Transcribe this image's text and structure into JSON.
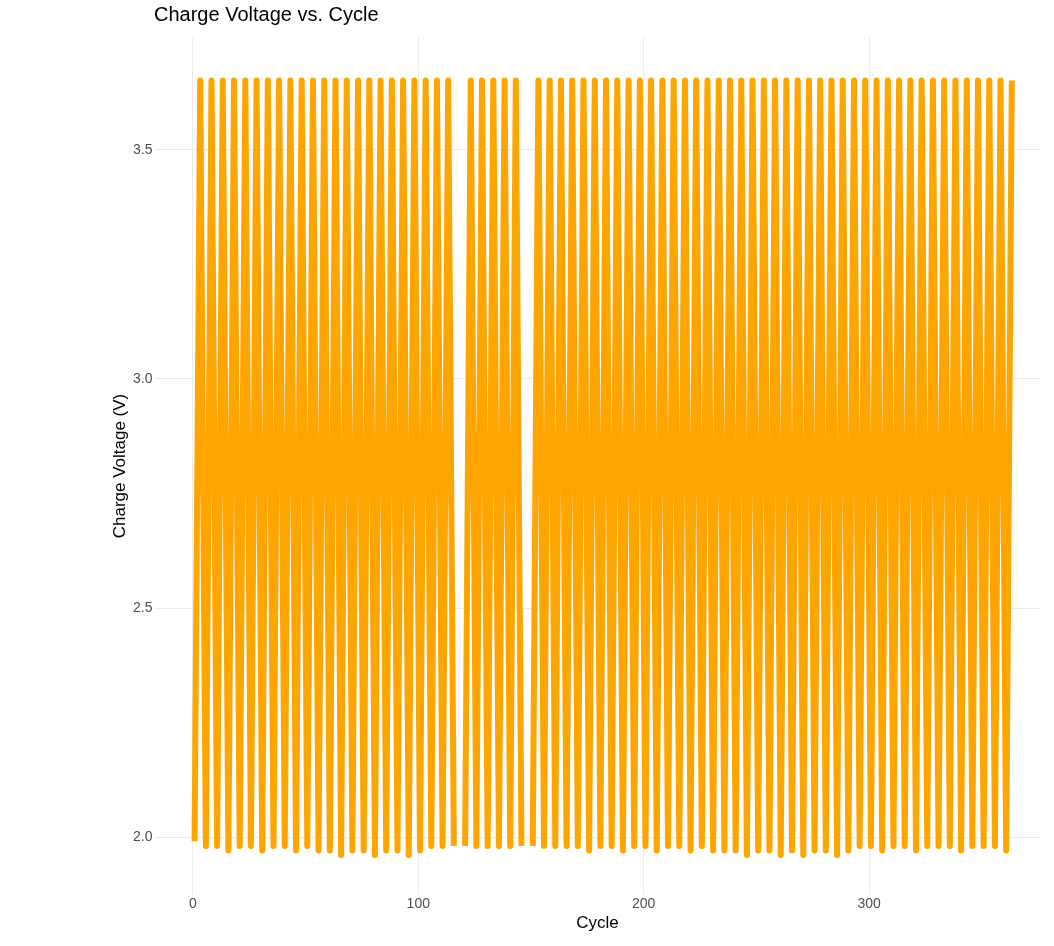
{
  "chart_data": {
    "type": "line",
    "title": "Charge Voltage vs. Cycle",
    "xlabel": "Cycle",
    "ylabel": "Charge Voltage (V)",
    "x": [
      1,
      3.5,
      6,
      8.5,
      11,
      13.5,
      16,
      18.5,
      21,
      23.5,
      26,
      28.5,
      31,
      33.5,
      36,
      38.5,
      41,
      43.5,
      46,
      48.5,
      51,
      53.5,
      56,
      58.5,
      61,
      63.5,
      66,
      68.5,
      71,
      73.5,
      76,
      78.5,
      81,
      83.5,
      86,
      88.5,
      91,
      93.5,
      96,
      98.5,
      101,
      103.5,
      106,
      108.5,
      111,
      113.5,
      116,
      118.5,
      121,
      123.5,
      126,
      128.5,
      131,
      133.5,
      136,
      138.5,
      141,
      143.5,
      146,
      148.5,
      151,
      153.5,
      156,
      158.5,
      161,
      163.5,
      166,
      168.5,
      171,
      173.5,
      176,
      178.5,
      181,
      183.5,
      186,
      188.5,
      191,
      193.5,
      196,
      198.5,
      201,
      203.5,
      206,
      208.5,
      211,
      213.5,
      216,
      218.5,
      221,
      223.5,
      226,
      228.5,
      231,
      233.5,
      236,
      238.5,
      241,
      243.5,
      246,
      248.5,
      251,
      253.5,
      256,
      258.5,
      261,
      263.5,
      266,
      268.5,
      271,
      273.5,
      276,
      278.5,
      281,
      283.5,
      286,
      288.5,
      291,
      293.5,
      296,
      298.5,
      301,
      303.5,
      306,
      308.5,
      311,
      313.5,
      316,
      318.5,
      321,
      323.5,
      326,
      328.5,
      331,
      333.5,
      336,
      338.5,
      341,
      343.5,
      346,
      348.5,
      351,
      353.5,
      356,
      358.5,
      361,
      363.5
    ],
    "series": [
      {
        "color": "#ffa500",
        "values": [
          1.99,
          3.65,
          1.98,
          3.65,
          1.98,
          3.65,
          1.97,
          3.65,
          1.98,
          3.65,
          1.98,
          3.65,
          1.97,
          3.65,
          1.98,
          3.65,
          1.98,
          3.65,
          1.97,
          3.65,
          1.98,
          3.65,
          1.97,
          3.65,
          1.97,
          3.65,
          1.96,
          3.65,
          1.97,
          3.65,
          1.97,
          3.65,
          1.96,
          3.65,
          1.97,
          3.65,
          1.97,
          3.65,
          1.96,
          3.65,
          1.97,
          3.65,
          1.98,
          3.65,
          1.98,
          3.65,
          1.98,
          null,
          1.98,
          3.65,
          1.98,
          3.65,
          1.98,
          3.65,
          1.98,
          3.65,
          1.98,
          3.65,
          1.98,
          null,
          1.98,
          3.65,
          1.98,
          3.65,
          1.98,
          3.65,
          1.98,
          3.65,
          1.98,
          3.65,
          1.97,
          3.65,
          1.98,
          3.65,
          1.98,
          3.65,
          1.97,
          3.65,
          1.98,
          3.65,
          1.98,
          3.65,
          1.97,
          3.65,
          1.98,
          3.65,
          1.98,
          3.65,
          1.97,
          3.65,
          1.98,
          3.65,
          1.97,
          3.65,
          1.97,
          3.65,
          1.97,
          3.65,
          1.96,
          3.65,
          1.97,
          3.65,
          1.97,
          3.65,
          1.96,
          3.65,
          1.97,
          3.65,
          1.96,
          3.65,
          1.97,
          3.65,
          1.97,
          3.65,
          1.96,
          3.65,
          1.97,
          3.65,
          1.98,
          3.65,
          1.98,
          3.65,
          1.97,
          3.65,
          1.98,
          3.65,
          1.98,
          3.65,
          1.97,
          3.65,
          1.98,
          3.65,
          1.98,
          3.65,
          1.98,
          3.65,
          1.97,
          3.65,
          1.98,
          3.65,
          1.98,
          3.65,
          1.98,
          3.65,
          1.97,
          3.65
        ]
      }
    ],
    "xlim": [
      -17,
      376
    ],
    "ylim": [
      1.875,
      3.745
    ],
    "xticks": [
      0,
      100,
      200,
      300
    ],
    "yticks": [
      {
        "value": 2,
        "label": "2.0"
      },
      {
        "value": 2.5,
        "label": "2.5"
      },
      {
        "value": 3,
        "label": "3.0"
      },
      {
        "value": 3.5,
        "label": "3.5"
      }
    ],
    "grid": true,
    "marker": "none",
    "line_style": "solid"
  }
}
